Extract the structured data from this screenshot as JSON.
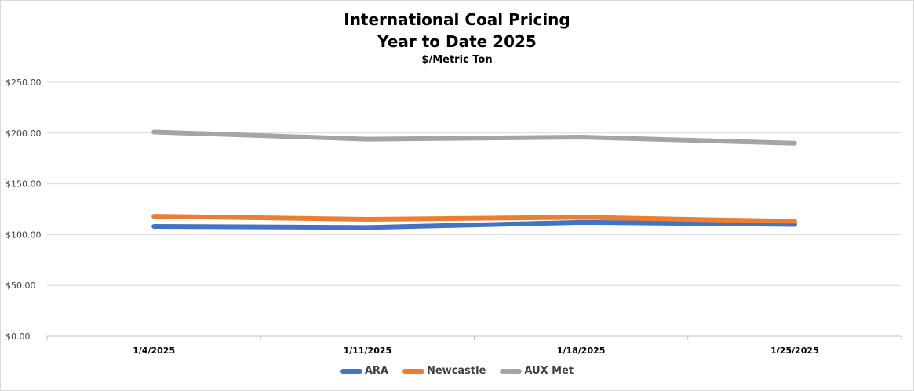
{
  "chart_data": {
    "type": "line",
    "title": "International Coal Pricing",
    "title_line2": "Year to Date 2025",
    "subtitle": "$/Metric Ton",
    "xlabel": "",
    "ylabel": "",
    "categories": [
      "1/4/2025",
      "1/11/2025",
      "1/18/2025",
      "1/25/2025"
    ],
    "y_ticks": [
      "$0.00",
      "$50.00",
      "$100.00",
      "$150.00",
      "$200.00",
      "$250.00"
    ],
    "ylim": [
      0,
      250
    ],
    "grid": true,
    "legend_position": "bottom",
    "series": [
      {
        "name": "ARA",
        "color": "#4472c4",
        "values": [
          108,
          107,
          112,
          110
        ]
      },
      {
        "name": "Newcastle",
        "color": "#ed7d31",
        "values": [
          118,
          115,
          117,
          113
        ]
      },
      {
        "name": "AUX Met",
        "color": "#a5a5a5",
        "values": [
          201,
          194,
          196,
          190
        ]
      }
    ]
  }
}
